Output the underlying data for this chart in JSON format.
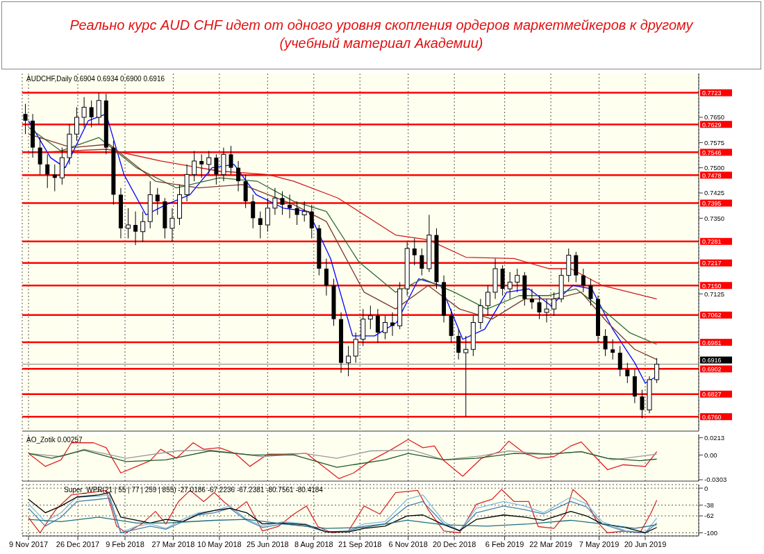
{
  "chart_data": [
    {
      "type": "candlestick",
      "title": "Реально курс AUD CHF идет от одного уровня скопления ордеров маркетмейкеров к другому",
      "subtitle": "(учебный материал Академии)",
      "annotations": [
        "AUDCHF,Daily  0.6904 0.6934 0.6900 0.6916"
      ],
      "color": "#000000",
      "x": [
        "2017-11-06",
        "2017-11-13",
        "2017-11-20",
        "2017-11-27",
        "2017-12-04",
        "2017-12-11",
        "2017-12-18",
        "2017-12-25",
        "2018-01-01",
        "2018-01-08",
        "2018-01-15",
        "2018-01-22",
        "2018-01-29",
        "2018-02-05",
        "2018-02-12",
        "2018-02-19",
        "2018-02-26",
        "2018-03-05",
        "2018-03-12",
        "2018-03-19",
        "2018-03-26",
        "2018-04-02",
        "2018-04-09",
        "2018-04-16",
        "2018-04-23",
        "2018-04-30",
        "2018-05-07",
        "2018-05-14",
        "2018-05-21",
        "2018-05-28",
        "2018-06-04",
        "2018-06-11",
        "2018-06-18",
        "2018-06-25",
        "2018-07-02",
        "2018-07-09",
        "2018-07-16",
        "2018-07-23",
        "2018-07-30",
        "2018-08-06",
        "2018-08-13",
        "2018-08-20",
        "2018-08-27",
        "2018-09-03",
        "2018-09-10",
        "2018-09-17",
        "2018-09-24",
        "2018-10-01",
        "2018-10-08",
        "2018-10-15",
        "2018-10-22",
        "2018-10-29",
        "2018-11-05",
        "2018-11-12",
        "2018-11-19",
        "2018-11-26",
        "2018-12-03",
        "2018-12-10",
        "2018-12-17",
        "2018-12-24",
        "2018-12-31",
        "2019-01-07",
        "2019-01-14",
        "2019-01-21",
        "2019-01-28",
        "2019-02-04",
        "2019-02-11",
        "2019-02-18",
        "2019-02-25",
        "2019-03-04",
        "2019-03-11",
        "2019-03-18",
        "2019-03-25",
        "2019-04-01",
        "2019-04-08",
        "2019-04-15",
        "2019-04-22",
        "2019-04-29",
        "2019-05-06",
        "2019-05-13",
        "2019-05-20",
        "2019-05-27",
        "2019-06-03",
        "2019-06-10",
        "2019-06-17",
        "2019-06-24",
        "2019-07-01"
      ],
      "ohlc": [
        [
          0.766,
          0.769,
          0.76,
          0.764
        ],
        [
          0.764,
          0.766,
          0.753,
          0.756
        ],
        [
          0.756,
          0.759,
          0.748,
          0.751
        ],
        [
          0.751,
          0.754,
          0.744,
          0.748
        ],
        [
          0.748,
          0.751,
          0.743,
          0.747
        ],
        [
          0.747,
          0.756,
          0.745,
          0.753
        ],
        [
          0.753,
          0.763,
          0.751,
          0.76
        ],
        [
          0.76,
          0.768,
          0.758,
          0.765
        ],
        [
          0.765,
          0.771,
          0.762,
          0.768
        ],
        [
          0.768,
          0.77,
          0.762,
          0.765
        ],
        [
          0.765,
          0.7723,
          0.763,
          0.77
        ],
        [
          0.77,
          0.772,
          0.754,
          0.756
        ],
        [
          0.756,
          0.758,
          0.739,
          0.742
        ],
        [
          0.742,
          0.744,
          0.729,
          0.732
        ],
        [
          0.732,
          0.738,
          0.729,
          0.733
        ],
        [
          0.733,
          0.737,
          0.727,
          0.731
        ],
        [
          0.731,
          0.737,
          0.728,
          0.734
        ],
        [
          0.734,
          0.746,
          0.732,
          0.742
        ],
        [
          0.742,
          0.744,
          0.736,
          0.74
        ],
        [
          0.74,
          0.741,
          0.729,
          0.732
        ],
        [
          0.732,
          0.738,
          0.728,
          0.735
        ],
        [
          0.735,
          0.745,
          0.733,
          0.742
        ],
        [
          0.742,
          0.751,
          0.74,
          0.748
        ],
        [
          0.748,
          0.755,
          0.746,
          0.752
        ],
        [
          0.752,
          0.754,
          0.747,
          0.751
        ],
        [
          0.751,
          0.755,
          0.748,
          0.753
        ],
        [
          0.753,
          0.754,
          0.745,
          0.748
        ],
        [
          0.748,
          0.756,
          0.746,
          0.754
        ],
        [
          0.754,
          0.7565,
          0.748,
          0.75
        ],
        [
          0.75,
          0.752,
          0.743,
          0.746
        ],
        [
          0.746,
          0.748,
          0.738,
          0.74
        ],
        [
          0.74,
          0.742,
          0.732,
          0.735
        ],
        [
          0.735,
          0.737,
          0.729,
          0.733
        ],
        [
          0.733,
          0.741,
          0.731,
          0.738
        ],
        [
          0.738,
          0.744,
          0.736,
          0.741
        ],
        [
          0.741,
          0.743,
          0.736,
          0.739
        ],
        [
          0.739,
          0.742,
          0.735,
          0.738
        ],
        [
          0.738,
          0.74,
          0.733,
          0.736
        ],
        [
          0.736,
          0.74,
          0.734,
          0.737
        ],
        [
          0.737,
          0.739,
          0.729,
          0.732
        ],
        [
          0.732,
          0.733,
          0.718,
          0.72
        ],
        [
          0.72,
          0.723,
          0.712,
          0.715
        ],
        [
          0.715,
          0.717,
          0.703,
          0.705
        ],
        [
          0.705,
          0.707,
          0.689,
          0.692
        ],
        [
          0.692,
          0.697,
          0.688,
          0.694
        ],
        [
          0.694,
          0.701,
          0.692,
          0.699
        ],
        [
          0.699,
          0.708,
          0.697,
          0.705
        ],
        [
          0.705,
          0.709,
          0.702,
          0.706
        ],
        [
          0.706,
          0.708,
          0.698,
          0.701
        ],
        [
          0.701,
          0.706,
          0.699,
          0.704
        ],
        [
          0.704,
          0.707,
          0.7,
          0.703
        ],
        [
          0.703,
          0.716,
          0.702,
          0.714
        ],
        [
          0.714,
          0.728,
          0.712,
          0.726
        ],
        [
          0.726,
          0.729,
          0.721,
          0.724
        ],
        [
          0.724,
          0.726,
          0.718,
          0.72
        ],
        [
          0.72,
          0.736,
          0.719,
          0.73
        ],
        [
          0.73,
          0.732,
          0.714,
          0.716
        ],
        [
          0.716,
          0.718,
          0.704,
          0.706
        ],
        [
          0.706,
          0.708,
          0.698,
          0.7
        ],
        [
          0.7,
          0.702,
          0.693,
          0.695
        ],
        [
          0.695,
          0.7,
          0.676,
          0.696
        ],
        [
          0.696,
          0.706,
          0.694,
          0.704
        ],
        [
          0.704,
          0.711,
          0.702,
          0.709
        ],
        [
          0.709,
          0.715,
          0.706,
          0.713
        ],
        [
          0.713,
          0.723,
          0.711,
          0.72
        ],
        [
          0.72,
          0.721,
          0.712,
          0.714
        ],
        [
          0.714,
          0.719,
          0.711,
          0.716
        ],
        [
          0.716,
          0.72,
          0.713,
          0.718
        ],
        [
          0.718,
          0.719,
          0.709,
          0.711
        ],
        [
          0.711,
          0.714,
          0.708,
          0.71
        ],
        [
          0.71,
          0.712,
          0.705,
          0.707
        ],
        [
          0.707,
          0.711,
          0.704,
          0.708
        ],
        [
          0.708,
          0.713,
          0.706,
          0.711
        ],
        [
          0.711,
          0.72,
          0.71,
          0.718
        ],
        [
          0.718,
          0.726,
          0.716,
          0.724
        ],
        [
          0.724,
          0.725,
          0.716,
          0.718
        ],
        [
          0.718,
          0.72,
          0.713,
          0.715
        ],
        [
          0.715,
          0.717,
          0.709,
          0.711
        ],
        [
          0.711,
          0.712,
          0.698,
          0.7
        ],
        [
          0.7,
          0.702,
          0.694,
          0.696
        ],
        [
          0.696,
          0.699,
          0.693,
          0.695
        ],
        [
          0.695,
          0.697,
          0.688,
          0.69
        ],
        [
          0.69,
          0.692,
          0.686,
          0.688
        ],
        [
          0.688,
          0.69,
          0.68,
          0.682
        ],
        [
          0.682,
          0.684,
          0.6755,
          0.678
        ],
        [
          0.678,
          0.688,
          0.677,
          0.687
        ],
        [
          0.687,
          0.6934,
          0.686,
          0.6916
        ]
      ],
      "series": [
        {
          "type": "line",
          "color": "#0000ff",
          "x": [
            "2017-11-09",
            "2017-11-30",
            "2017-12-14",
            "2018-01-05",
            "2018-01-22",
            "2018-02-08",
            "2018-03-01",
            "2018-03-20",
            "2018-04-12",
            "2018-05-03",
            "2018-05-24",
            "2018-06-14",
            "2018-07-10",
            "2018-08-03",
            "2018-08-24",
            "2018-09-14",
            "2018-10-05",
            "2018-10-26",
            "2018-11-16",
            "2018-12-07",
            "2018-12-28",
            "2019-01-18",
            "2019-02-08",
            "2019-03-01",
            "2019-03-22",
            "2019-04-12",
            "2019-04-30",
            "2019-05-20",
            "2019-06-10",
            "2019-06-20",
            "2019-07-01"
          ],
          "values": [
            0.764,
            0.753,
            0.75,
            0.764,
            0.766,
            0.748,
            0.736,
            0.739,
            0.742,
            0.75,
            0.751,
            0.742,
            0.738,
            0.737,
            0.723,
            0.7,
            0.7,
            0.704,
            0.717,
            0.715,
            0.699,
            0.702,
            0.713,
            0.714,
            0.709,
            0.715,
            0.714,
            0.702,
            0.692,
            0.686,
            0.688
          ]
        },
        {
          "type": "line",
          "color": "#2e6b2e",
          "x": [
            "2017-11-09",
            "2017-12-10",
            "2018-01-15",
            "2018-02-20",
            "2018-03-30",
            "2018-05-10",
            "2018-06-15",
            "2018-07-20",
            "2018-08-20",
            "2018-09-20",
            "2018-10-25",
            "2018-11-20",
            "2018-12-20",
            "2019-01-20",
            "2019-02-20",
            "2019-03-20",
            "2019-04-15",
            "2019-05-10",
            "2019-06-05",
            "2019-07-01"
          ],
          "values": [
            0.762,
            0.755,
            0.759,
            0.75,
            0.744,
            0.747,
            0.746,
            0.74,
            0.737,
            0.722,
            0.713,
            0.717,
            0.713,
            0.708,
            0.712,
            0.712,
            0.714,
            0.708,
            0.701,
            0.6975
          ]
        },
        {
          "type": "line",
          "color": "#7a3b2e",
          "x": [
            "2017-11-09",
            "2017-12-20",
            "2018-01-25",
            "2018-03-10",
            "2018-04-20",
            "2018-06-01",
            "2018-07-20",
            "2018-08-20",
            "2018-09-25",
            "2018-10-25",
            "2018-11-25",
            "2018-12-25",
            "2019-01-25",
            "2019-02-25",
            "2019-03-25",
            "2019-04-20",
            "2019-05-15",
            "2019-06-10",
            "2019-07-01"
          ],
          "values": [
            0.76,
            0.756,
            0.757,
            0.746,
            0.744,
            0.745,
            0.739,
            0.734,
            0.713,
            0.708,
            0.715,
            0.708,
            0.705,
            0.711,
            0.711,
            0.713,
            0.704,
            0.696,
            0.693
          ]
        },
        {
          "type": "line",
          "color": "#cc1a1a",
          "x": [
            "2017-11-09",
            "2018-01-23",
            "2018-03-15",
            "2018-05-10",
            "2018-06-25",
            "2018-07-20",
            "2018-08-31",
            "2018-10-25",
            "2018-11-25",
            "2018-12-31",
            "2019-02-15",
            "2019-03-20",
            "2019-04-10",
            "2019-05-10",
            "2019-07-01"
          ],
          "values": [
            0.7545,
            0.7555,
            0.752,
            0.749,
            0.748,
            0.746,
            0.741,
            0.73,
            0.7286,
            0.7234,
            0.723,
            0.72,
            0.72,
            0.715,
            0.711
          ]
        }
      ],
      "ref_lines": [
        {
          "axis": "y",
          "value": 0.7723,
          "label": "0.7723",
          "color": "#ff0000"
        },
        {
          "axis": "y",
          "value": 0.7629,
          "label": "0.7629",
          "color": "#ff0000"
        },
        {
          "axis": "y",
          "value": 0.7546,
          "label": "0.7546",
          "color": "#ff0000"
        },
        {
          "axis": "y",
          "value": 0.7478,
          "label": "0.7478",
          "color": "#ff0000"
        },
        {
          "axis": "y",
          "value": 0.7395,
          "label": "0.7395",
          "color": "#ff0000"
        },
        {
          "axis": "y",
          "value": 0.7281,
          "label": "0.7281",
          "color": "#ff0000"
        },
        {
          "axis": "y",
          "value": 0.7217,
          "label": "0.7217",
          "color": "#ff0000"
        },
        {
          "axis": "y",
          "value": 0.715,
          "label": "0.7150",
          "color": "#ff0000"
        },
        {
          "axis": "y",
          "value": 0.7062,
          "label": "0.7062",
          "color": "#ff0000"
        },
        {
          "axis": "y",
          "value": 0.6981,
          "label": "0.6981",
          "color": "#ff0000"
        },
        {
          "axis": "y",
          "value": 0.6916,
          "label": "0.6916",
          "color": "#000000"
        },
        {
          "axis": "y",
          "value": 0.6902,
          "label": "0.6902",
          "color": "#ff0000"
        },
        {
          "axis": "y",
          "value": 0.6827,
          "label": "0.6827",
          "color": "#ff0000"
        },
        {
          "axis": "y",
          "value": 0.676,
          "label": "0.6760",
          "color": "#ff0000"
        }
      ],
      "xlim": [
        "2017-11-03",
        "2019-08-10"
      ],
      "ylim": [
        0.6717,
        0.778
      ],
      "xticks": [
        {
          "value": "2017-11-09",
          "label": null
        },
        {
          "value": "2017-12-26",
          "label": null
        },
        {
          "value": "2018-02-09",
          "label": null
        },
        {
          "value": "2018-03-27",
          "label": null
        },
        {
          "value": "2018-05-10",
          "label": null
        },
        {
          "value": "2018-06-25",
          "label": null
        },
        {
          "value": "2018-08-08",
          "label": null
        },
        {
          "value": "2018-09-21",
          "label": null
        },
        {
          "value": "2018-11-06",
          "label": null
        },
        {
          "value": "2018-12-20",
          "label": null
        },
        {
          "value": "2019-02-06",
          "label": null
        },
        {
          "value": "2019-03-22",
          "label": null
        },
        {
          "value": "2019-05-07",
          "label": null
        },
        {
          "value": "2019-06-20",
          "label": null
        }
      ],
      "yticks": [
        {
          "value": 0.765,
          "label": "0.7650"
        },
        0.7575,
        {
          "value": 0.75,
          "label": "0.7500"
        },
        0.7425,
        {
          "value": 0.735,
          "label": "0.7350"
        },
        0.7125
      ],
      "tick_labels": "y",
      "grid": "x",
      "legend": false
    },
    {
      "type": "line",
      "annotations": [
        "AO_Zotik 0.00257"
      ],
      "series": [
        {
          "color": "#e02020",
          "x": [
            "2017-11-09",
            "2017-11-25",
            "2017-12-10",
            "2017-12-20",
            "2018-01-10",
            "2018-01-22",
            "2018-02-05",
            "2018-02-20",
            "2018-03-05",
            "2018-03-15",
            "2018-03-30",
            "2018-04-15",
            "2018-04-25",
            "2018-05-10",
            "2018-05-25",
            "2018-06-08",
            "2018-06-25",
            "2018-07-10",
            "2018-08-01",
            "2018-08-15",
            "2018-09-01",
            "2018-09-15",
            "2018-10-01",
            "2018-10-20",
            "2018-11-06",
            "2018-11-20",
            "2018-12-01",
            "2018-12-10",
            "2018-12-28",
            "2019-01-15",
            "2019-02-01",
            "2019-02-10",
            "2019-02-25",
            "2019-03-10",
            "2019-03-25",
            "2019-04-10",
            "2019-04-20",
            "2019-05-01",
            "2019-05-15",
            "2019-05-30",
            "2019-06-20",
            "2019-07-01"
          ],
          "values": [
            0.002,
            -0.014,
            -0.006,
            0.015,
            0.015,
            0.009,
            -0.022,
            -0.014,
            -0.007,
            0.007,
            -0.004,
            0.015,
            0.007,
            0.009,
            0.002,
            -0.014,
            0.001,
            0.001,
            0.002,
            -0.012,
            -0.029,
            -0.022,
            -0.007,
            0.006,
            0.019,
            0.009,
            0.011,
            -0.007,
            -0.026,
            -0.004,
            0.004,
            0.017,
            0.002,
            -0.004,
            -0.002,
            0.011,
            0.016,
            0.001,
            -0.018,
            -0.012,
            -0.014,
            0.004
          ]
        },
        {
          "color": "#999999",
          "x": [
            "2017-11-09",
            "2017-12-10",
            "2018-01-01",
            "2018-02-10",
            "2018-03-30",
            "2018-05-01",
            "2018-06-20",
            "2018-07-30",
            "2018-08-30",
            "2018-10-01",
            "2018-11-10",
            "2018-12-10",
            "2019-01-15",
            "2019-02-10",
            "2019-03-20",
            "2019-04-20",
            "2019-05-20",
            "2019-07-01"
          ],
          "values": [
            0.002,
            -0.002,
            0.007,
            -0.004,
            0.005,
            0.006,
            -0.002,
            0.002,
            -0.004,
            0.005,
            0.006,
            -0.006,
            -0.001,
            0.005,
            0.001,
            0.004,
            -0.006,
            0.001
          ]
        },
        {
          "color": "#1f5a1f",
          "x": [
            "2017-11-09",
            "2017-12-01",
            "2018-01-01",
            "2018-02-10",
            "2018-03-20",
            "2018-05-01",
            "2018-06-10",
            "2018-07-20",
            "2018-08-30",
            "2018-10-15",
            "2018-11-06",
            "2018-12-10",
            "2019-01-10",
            "2019-02-15",
            "2019-03-20",
            "2019-04-20",
            "2019-05-15",
            "2019-06-15",
            "2019-07-01"
          ],
          "values": [
            0.002,
            -0.004,
            0.006,
            -0.008,
            -0.006,
            0.005,
            0,
            0,
            -0.015,
            -0.006,
            0.002,
            -0.006,
            -0.004,
            0.002,
            0.001,
            0.004,
            -0.004,
            -0.007,
            -0.005
          ]
        }
      ],
      "xlim": [
        "2017-11-03",
        "2019-08-10"
      ],
      "ylim": [
        -0.032,
        0.025
      ],
      "xticks": [
        {
          "value": "2017-11-09",
          "label": null
        },
        {
          "value": "2017-12-26",
          "label": null
        },
        {
          "value": "2018-02-09",
          "label": null
        },
        {
          "value": "2018-03-27",
          "label": null
        },
        {
          "value": "2018-05-10",
          "label": null
        },
        {
          "value": "2018-06-25",
          "label": null
        },
        {
          "value": "2018-08-08",
          "label": null
        },
        {
          "value": "2018-09-21",
          "label": null
        },
        {
          "value": "2018-11-06",
          "label": null
        },
        {
          "value": "2018-12-20",
          "label": null
        },
        {
          "value": "2019-02-06",
          "label": null
        },
        {
          "value": "2019-03-22",
          "label": null
        },
        {
          "value": "2019-05-07",
          "label": null
        },
        {
          "value": "2019-06-20",
          "label": null
        }
      ],
      "yticks": [
        0.0213,
        {
          "value": 0,
          "label": "0.00"
        },
        -0.0303
      ],
      "tick_labels": "y",
      "grid": "x",
      "legend": false
    },
    {
      "type": "line",
      "annotations": [
        "Super_WPR(21 | 55 | 77 | 259 | 855) -27.0186 -67.2236 -67.2381 -80.7561 -80.4184"
      ],
      "series": [
        {
          "color": "#d42a2a",
          "x": [
            "2017-11-09",
            "2017-11-20",
            "2017-12-05",
            "2017-12-20",
            "2018-01-10",
            "2018-01-22",
            "2018-02-01",
            "2018-02-10",
            "2018-02-25",
            "2018-03-10",
            "2018-03-20",
            "2018-04-01",
            "2018-04-12",
            "2018-04-25",
            "2018-05-05",
            "2018-05-15",
            "2018-05-25",
            "2018-06-05",
            "2018-06-20",
            "2018-07-05",
            "2018-07-20",
            "2018-08-01",
            "2018-08-12",
            "2018-08-25",
            "2018-09-10",
            "2018-09-25",
            "2018-10-10",
            "2018-10-25",
            "2018-11-15",
            "2018-11-25",
            "2018-12-10",
            "2018-12-25",
            "2019-01-10",
            "2019-01-25",
            "2019-02-03",
            "2019-02-15",
            "2019-03-01",
            "2019-03-10",
            "2019-03-25",
            "2019-04-05",
            "2019-04-12",
            "2019-04-25",
            "2019-05-05",
            "2019-05-15",
            "2019-06-01",
            "2019-06-15",
            "2019-06-25",
            "2019-07-01"
          ],
          "values": [
            -66,
            -100,
            -48,
            -15,
            -9,
            -5,
            -85,
            -100,
            -80,
            -52,
            -80,
            -30,
            -5,
            -30,
            -10,
            -32,
            -50,
            -30,
            -96,
            -86,
            -58,
            -40,
            -86,
            -100,
            -96,
            -40,
            -58,
            -10,
            -5,
            -48,
            -96,
            -100,
            -36,
            -25,
            -3,
            -30,
            -30,
            -86,
            -90,
            -58,
            -3,
            -30,
            -75,
            -100,
            -96,
            -100,
            -58,
            -27
          ]
        },
        {
          "color": "#7fb8e0",
          "x": [
            "2017-11-09",
            "2017-11-25",
            "2017-12-10",
            "2017-12-25",
            "2018-01-15",
            "2018-01-25",
            "2018-02-05",
            "2018-02-20",
            "2018-03-05",
            "2018-03-20",
            "2018-04-05",
            "2018-04-20",
            "2018-05-05",
            "2018-05-20",
            "2018-06-05",
            "2018-06-20",
            "2018-07-10",
            "2018-08-01",
            "2018-08-20",
            "2018-09-10",
            "2018-09-25",
            "2018-10-15",
            "2018-11-05",
            "2018-11-20",
            "2018-12-10",
            "2018-12-25",
            "2019-01-10",
            "2019-02-05",
            "2019-02-25",
            "2019-03-15",
            "2019-04-10",
            "2019-04-25",
            "2019-05-10",
            "2019-06-01",
            "2019-06-20",
            "2019-07-01"
          ],
          "values": [
            -35,
            -75,
            -55,
            -20,
            -18,
            -15,
            -100,
            -85,
            -80,
            -90,
            -70,
            -55,
            -50,
            -40,
            -70,
            -85,
            -75,
            -80,
            null,
            -95,
            -80,
            -75,
            -25,
            -15,
            -75,
            -95,
            -45,
            -30,
            -40,
            -55,
            -20,
            -35,
            -75,
            -95,
            -100,
            -67
          ]
        },
        {
          "color": "#4a7fb0",
          "x": [
            "2017-11-09",
            "2017-11-25",
            "2017-12-10",
            "2017-12-25",
            "2018-01-15",
            "2018-01-25",
            "2018-02-05",
            "2018-02-20",
            "2018-03-05",
            "2018-03-20",
            "2018-04-05",
            "2018-04-20",
            "2018-05-05",
            "2018-05-20",
            "2018-06-05",
            "2018-06-20",
            "2018-07-10",
            "2018-08-01",
            "2018-08-20",
            "2018-09-10",
            "2018-09-25",
            "2018-10-15",
            "2018-11-05",
            "2018-11-20",
            "2018-12-10",
            "2018-12-25",
            "2019-01-10",
            "2019-02-05",
            "2019-02-25",
            "2019-03-15",
            "2019-04-10",
            "2019-04-25",
            "2019-05-10",
            "2019-06-01",
            "2019-06-20",
            "2019-07-01"
          ],
          "values": [
            -45,
            -85,
            -65,
            -30,
            -25,
            -22,
            -100,
            -92,
            -85,
            -92,
            -75,
            -60,
            -55,
            -45,
            -72,
            -88,
            -80,
            -85,
            -98,
            -96,
            -85,
            -80,
            -40,
            -30,
            -80,
            -96,
            -55,
            -40,
            -48,
            -58,
            -30,
            -42,
            -80,
            -97,
            -100,
            -78
          ]
        },
        {
          "color": "#000000",
          "x": [
            "2017-11-09",
            "2017-11-25",
            "2017-12-10",
            "2017-12-25",
            "2018-01-15",
            "2018-01-25",
            "2018-02-05",
            "2018-02-20",
            "2018-03-05",
            "2018-03-20",
            "2018-04-05",
            "2018-04-20",
            "2018-05-05",
            "2018-05-20",
            "2018-06-05",
            "2018-06-20",
            "2018-07-10",
            "2018-08-01",
            "2018-08-20",
            "2018-09-10",
            "2018-09-25",
            "2018-10-15",
            "2018-11-05",
            "2018-11-20",
            "2018-12-10",
            "2018-12-25",
            "2019-01-10",
            "2019-02-05",
            "2019-02-25",
            "2019-03-15",
            "2019-04-10",
            "2019-04-25",
            "2019-05-10",
            "2019-06-01",
            "2019-06-20",
            "2019-07-01"
          ],
          "values": [
            -25,
            -55,
            -40,
            -20,
            -15,
            -10,
            -65,
            -72,
            -78,
            -70,
            -75,
            -58,
            -50,
            -45,
            -55,
            -80,
            -78,
            -82,
            -98,
            -98,
            -90,
            -85,
            -62,
            -60,
            -82,
            -95,
            -70,
            -60,
            -65,
            -72,
            -52,
            -62,
            -80,
            -88,
            -100,
            -88
          ]
        },
        {
          "color": "#1f6f80",
          "x": [
            "2017-11-09",
            "2017-12-10",
            "2018-01-15",
            "2018-02-20",
            "2018-03-20",
            "2018-05-05",
            "2018-06-05",
            "2018-07-10",
            "2018-08-20",
            "2018-09-25",
            "2018-11-05",
            "2018-12-10",
            "2019-01-20",
            "2019-03-01",
            "2019-04-10",
            "2019-05-10",
            "2019-06-10",
            "2019-07-01"
          ],
          "values": [
            -70,
            -75,
            -65,
            -78,
            -78,
            -72,
            -70,
            -80,
            -90,
            -88,
            -72,
            -82,
            -85,
            -80,
            -72,
            -80,
            -90,
            -82
          ]
        }
      ],
      "xlim": [
        "2017-11-03",
        "2019-08-10"
      ],
      "ylim": [
        -107,
        8
      ],
      "yticks": [
        0,
        -38,
        -62,
        -100
      ],
      "xticks": [
        {
          "value": "2017-11-09",
          "label": "9 Nov 2017"
        },
        {
          "value": "2017-12-26",
          "label": "26 Dec 2017"
        },
        {
          "value": "2018-02-09",
          "label": "9 Feb 2018"
        },
        {
          "value": "2018-03-27",
          "label": "27 Mar 2018"
        },
        {
          "value": "2018-05-10",
          "label": "10 May 2018"
        },
        {
          "value": "2018-06-25",
          "label": "25 Jun 2018"
        },
        {
          "value": "2018-08-08",
          "label": "8 Aug 2018"
        },
        {
          "value": "2018-09-21",
          "label": "21 Sep 2018"
        },
        {
          "value": "2018-11-06",
          "label": "6 Nov 2018"
        },
        {
          "value": "2018-12-20",
          "label": "20 Dec 2018"
        },
        {
          "value": "2019-02-06",
          "label": "6 Feb 2019"
        },
        {
          "value": "2019-03-22",
          "label": "22 Mar 2019"
        },
        {
          "value": "2019-05-07",
          "label": "7 May 2019"
        },
        {
          "value": "2019-06-20",
          "label": "20 Jun 2019"
        }
      ],
      "grid": true,
      "legend": false
    }
  ]
}
